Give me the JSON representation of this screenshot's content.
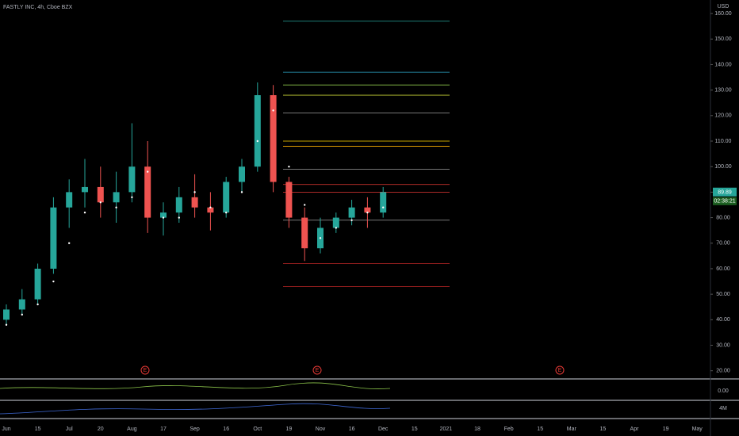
{
  "chart_data": {
    "type": "candlestick",
    "title": "FASTLY INC, 4h, Cboe BZX",
    "currency": "USD",
    "categories": [
      "Jun",
      null,
      "15",
      null,
      "Jul",
      null,
      "20",
      null,
      "Aug",
      null,
      "17",
      null,
      "Sep",
      null,
      "16",
      null,
      "Oct",
      null,
      "19",
      null,
      "Nov",
      null,
      "16",
      null,
      "Dec",
      null,
      "15",
      null,
      "2021",
      null,
      "18",
      null,
      "Feb",
      null,
      "15",
      null,
      "Mar",
      null,
      "15",
      null,
      "Apr",
      null,
      "19",
      null,
      "May",
      null
    ],
    "open": [
      40,
      44,
      48,
      60,
      84,
      90,
      92,
      86,
      90,
      100,
      80,
      82,
      88,
      84,
      82,
      94,
      100,
      128,
      94,
      80,
      68,
      76,
      80,
      84,
      82,
      null,
      null,
      null,
      null,
      null,
      null,
      null,
      null,
      null,
      null,
      null,
      null,
      null,
      null,
      null,
      null,
      null,
      null,
      null,
      null,
      null
    ],
    "high": [
      46,
      52,
      62,
      88,
      95,
      103,
      100,
      98,
      117,
      110,
      86,
      92,
      97,
      90,
      96,
      103,
      133,
      132,
      96,
      84,
      80,
      82,
      87,
      88,
      92,
      null,
      null,
      null,
      null,
      null,
      null,
      null,
      null,
      null,
      null,
      null,
      null,
      null,
      null,
      null,
      null,
      null,
      null,
      null,
      null,
      null
    ],
    "low": [
      38,
      42,
      46,
      58,
      76,
      84,
      80,
      78,
      86,
      74,
      73,
      78,
      80,
      75,
      80,
      90,
      98,
      90,
      76,
      63,
      66,
      74,
      77,
      76,
      80,
      null,
      null,
      null,
      null,
      null,
      null,
      null,
      null,
      null,
      null,
      null,
      null,
      null,
      null,
      null,
      null,
      null,
      null,
      null,
      null,
      null
    ],
    "close": [
      44,
      48,
      60,
      84,
      90,
      92,
      86,
      90,
      100,
      80,
      82,
      88,
      84,
      82,
      94,
      100,
      128,
      94,
      80,
      68,
      76,
      80,
      84,
      82,
      90,
      null,
      null,
      null,
      null,
      null,
      null,
      null,
      null,
      null,
      null,
      null,
      null,
      null,
      null,
      null,
      null,
      null,
      null,
      null,
      null,
      null
    ],
    "trail": [
      38,
      42,
      46,
      55,
      70,
      82,
      86,
      84,
      88,
      98,
      80,
      80,
      90,
      84,
      82,
      90,
      110,
      122,
      100,
      85,
      72,
      76,
      79,
      82,
      84,
      null,
      null,
      null,
      null,
      null,
      null,
      null,
      null,
      null,
      null,
      null,
      null,
      null,
      null,
      null,
      null,
      null,
      null,
      null,
      null,
      null
    ],
    "up_color": "#26a69a",
    "down_color": "#ef5350",
    "trail_color": "#ffffff",
    "levels": [
      {
        "value": 157,
        "color": "#26a69a"
      },
      {
        "value": 137,
        "color": "#2ca8c8"
      },
      {
        "value": 132,
        "color": "#8bc34a"
      },
      {
        "value": 128,
        "color": "#c0ca33"
      },
      {
        "value": 121,
        "color": "#9e9e9e"
      },
      {
        "value": 110,
        "color": "#ffd600"
      },
      {
        "value": 108,
        "color": "#ffb300"
      },
      {
        "value": 99,
        "color": "#9e9e9e"
      },
      {
        "value": 93,
        "color": "#e53935"
      },
      {
        "value": 90,
        "color": "#e53935"
      },
      {
        "value": 79,
        "color": "#9e9e9e"
      },
      {
        "value": 62,
        "color": "#c62828"
      },
      {
        "value": 53,
        "color": "#c62828"
      }
    ],
    "last_price": {
      "value": 89.89,
      "label": "89.89"
    },
    "countdown": "02:38:21",
    "earnings": [
      "E",
      "E",
      "E"
    ],
    "oscillator_label": "0.00",
    "volume_label": "4M",
    "ylim": [
      16.8,
      165.3
    ],
    "yticks": [
      {
        "value": 20,
        "label": "20.00"
      },
      {
        "value": 30,
        "label": "30.00"
      },
      {
        "value": 40,
        "label": "40.00"
      },
      {
        "value": 50,
        "label": "50.00"
      },
      {
        "value": 60,
        "label": "60.00"
      },
      {
        "value": 70,
        "label": "70.00"
      },
      {
        "value": 80,
        "label": "80.00"
      },
      {
        "value": 90,
        "label": "90.00"
      },
      {
        "value": 100,
        "label": "100.00"
      },
      {
        "value": 110,
        "label": "110.00"
      },
      {
        "value": 120,
        "label": "120.00"
      },
      {
        "value": 130,
        "label": "130.00"
      },
      {
        "value": 140,
        "label": "140.00"
      },
      {
        "value": 150,
        "label": "150.00"
      },
      {
        "value": 160,
        "label": "160.00"
      }
    ]
  }
}
